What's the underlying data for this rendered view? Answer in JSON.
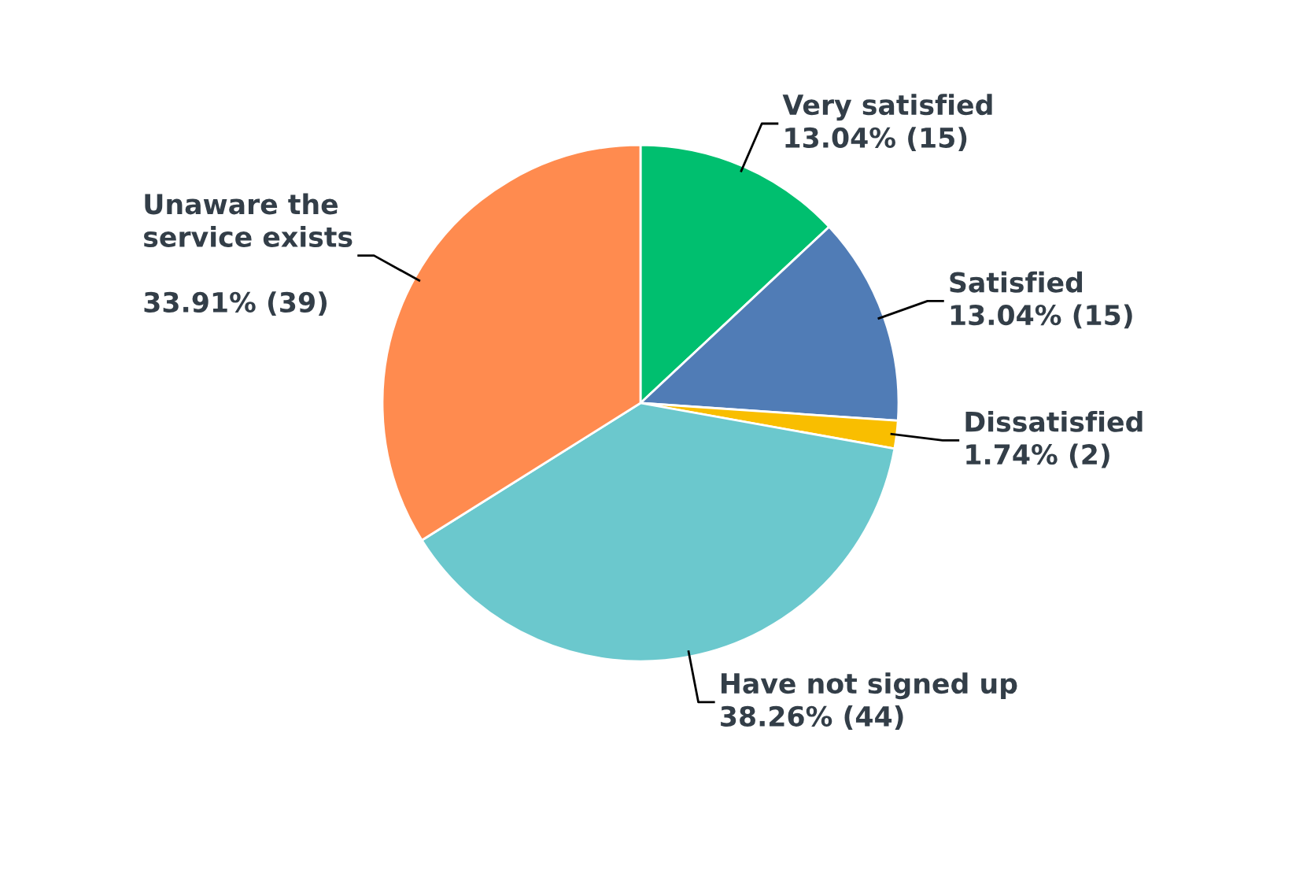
{
  "chart_data": {
    "type": "pie",
    "categories": [
      "Very satisfied",
      "Satisfied",
      "Dissatisfied",
      "Have not signed up",
      "Unaware the\nservice exists\n"
    ],
    "values": [
      15,
      15,
      2,
      44,
      39
    ],
    "value_labels": [
      "13.04% (15)",
      "13.04% (15)",
      "1.74% (2)",
      "38.26% (44)",
      "33.91% (39)"
    ],
    "colors": [
      "#00bf6f",
      "#507cb6",
      "#f9be00",
      "#6bc8cd",
      "#ff8b4f"
    ],
    "legend": false
  }
}
